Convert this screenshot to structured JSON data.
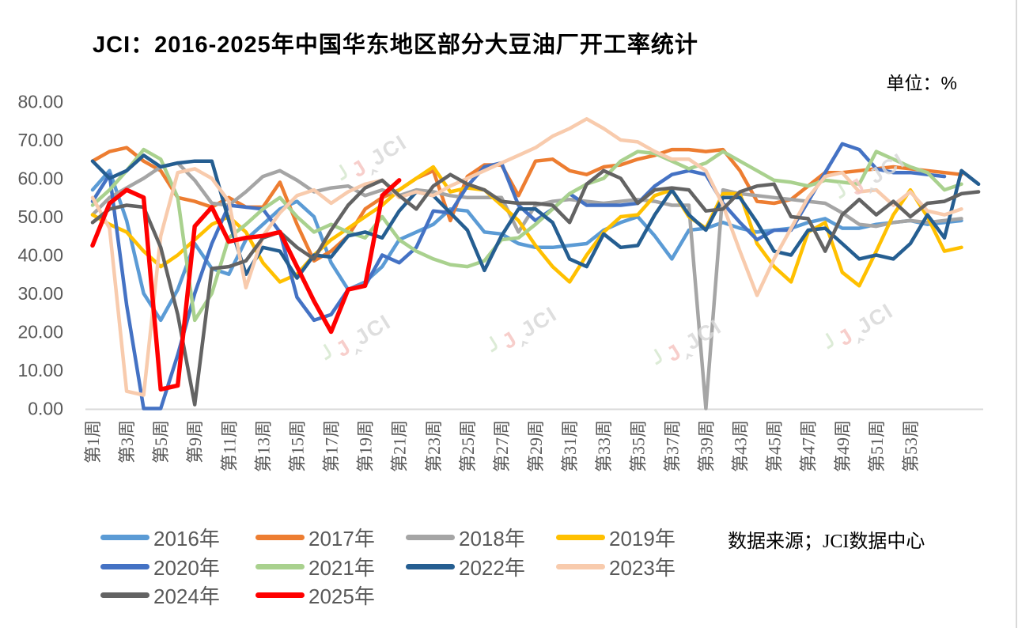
{
  "title": "JCI：2016-2025年中国华东地区部分大豆油厂开工率统计",
  "unit_label": "单位：%",
  "source_label": "数据来源；JCI数据中心",
  "watermark": {
    "tick": "╯",
    "j": "J",
    "gray": "‸JCI"
  },
  "chart_data": {
    "type": "line",
    "title": "JCI：2016-2025年中国华东地区部分大豆油厂开工率统计",
    "unit": "%",
    "grid": false,
    "legend_position": "bottom-left",
    "y_axis": {
      "min": 0,
      "max": 80,
      "tick_labels": [
        "80.00",
        "70.00",
        "60.00",
        "50.00",
        "40.00",
        "30.00",
        "20.00",
        "10.00",
        "0.00"
      ]
    },
    "x_axis": {
      "total_positions": 53,
      "label_every": 2,
      "tick_labels": [
        "第1周",
        "第3周",
        "第5周",
        "第9周",
        "第11周",
        "第13周",
        "第15周",
        "第17周",
        "第19周",
        "第21周",
        "第23周",
        "第25周",
        "第27周",
        "第29周",
        "第31周",
        "第33周",
        "第35周",
        "第37周",
        "第39周",
        "第43周",
        "第45周",
        "第47周",
        "第49周",
        "第51周",
        "第53周"
      ]
    },
    "series": [
      {
        "name": "2016年",
        "color": "#5B9BD5",
        "values": [
          57,
          62,
          49,
          30,
          23,
          31,
          43,
          36.5,
          35,
          44,
          48,
          52,
          54,
          50,
          38,
          31,
          33,
          37,
          44,
          46,
          48,
          52,
          51.5,
          46,
          45.5,
          43,
          42,
          42,
          42.5,
          43,
          46.5,
          48.5,
          50,
          45,
          39,
          46.5,
          47,
          48.5,
          47,
          46,
          46.5,
          47,
          48.5,
          49.5,
          47,
          47,
          48,
          48.5,
          49,
          48,
          48.5,
          49
        ]
      },
      {
        "name": "2017年",
        "color": "#ED7D31",
        "values": [
          64.5,
          67,
          68,
          64.5,
          62,
          55,
          54,
          52.5,
          55,
          52.5,
          52.5,
          59,
          48,
          38.5,
          41,
          45,
          52,
          55,
          57,
          60,
          62,
          49,
          60.5,
          63.5,
          63.5,
          55.5,
          64.5,
          65,
          62,
          61,
          63,
          63.5,
          65,
          66,
          67.5,
          67.5,
          67,
          67.5,
          62,
          54,
          53.5,
          54.5,
          58,
          61.5,
          61.5,
          62,
          62.5,
          63,
          62.5,
          62,
          61.5,
          61
        ]
      },
      {
        "name": "2018年",
        "color": "#A5A5A5",
        "values": [
          50.5,
          55,
          57.5,
          60,
          63,
          64,
          59.5,
          53.5,
          53,
          56.5,
          60.5,
          62,
          59.5,
          56.5,
          57.5,
          58,
          55.5,
          57,
          55.5,
          57,
          56.5,
          55.5,
          55,
          55,
          55,
          46,
          53,
          54,
          54.5,
          54,
          53.5,
          54,
          54.5,
          54,
          53,
          53,
          0,
          57,
          56,
          55.5,
          55,
          54.5,
          54,
          53.5,
          51,
          48,
          47.5,
          48.5,
          49,
          48.5,
          49,
          49.5
        ]
      },
      {
        "name": "2019年",
        "color": "#FFC000",
        "values": [
          50.5,
          48,
          46,
          41,
          37,
          40,
          44,
          48,
          50,
          46,
          38,
          33,
          35,
          40,
          44,
          47,
          50,
          53,
          57,
          60,
          63,
          56.5,
          57.5,
          57,
          53,
          49,
          42.5,
          37,
          33,
          40,
          46,
          50,
          50.5,
          55.5,
          57,
          50,
          47,
          56,
          56,
          43,
          37,
          33,
          46,
          48.5,
          35.5,
          32,
          41,
          50.5,
          57,
          50,
          41,
          42
        ]
      },
      {
        "name": "2020年",
        "color": "#4472C4",
        "values": [
          54,
          61,
          27,
          0,
          0,
          14,
          30,
          43,
          53,
          52.5,
          52,
          46,
          29,
          23,
          24.5,
          31,
          32,
          40,
          38,
          42,
          51.5,
          51,
          58,
          63,
          64,
          53,
          49,
          52,
          56,
          53,
          53,
          53,
          53.5,
          58,
          61,
          62,
          61,
          53.5,
          48.5,
          44,
          46.5,
          46.5,
          54,
          61.5,
          69,
          67.5,
          62.5,
          61.5,
          61.5,
          61,
          60.5
        ]
      },
      {
        "name": "2021年",
        "color": "#A9D18E",
        "values": [
          53,
          57,
          62,
          67.5,
          65,
          55,
          23,
          30,
          44.5,
          48,
          52,
          55,
          50,
          46,
          48,
          46,
          44.5,
          50,
          44,
          41,
          39,
          37.5,
          37,
          38.5,
          44,
          44.5,
          48,
          52,
          56,
          58.5,
          60,
          64.5,
          67,
          66.5,
          64.5,
          62.5,
          64,
          67,
          64.5,
          62,
          59.5,
          59,
          58,
          59.5,
          59,
          58.5,
          67,
          65,
          63,
          61.5,
          57,
          58.5
        ]
      },
      {
        "name": "2022年",
        "color": "#255E91",
        "values": [
          64.5,
          60,
          62,
          66,
          63,
          64,
          64.5,
          64.5,
          49,
          35,
          42,
          41,
          34,
          40,
          39.5,
          45,
          46,
          44.5,
          51.5,
          56.5,
          55.5,
          51,
          46.5,
          36,
          45,
          52,
          52,
          48.5,
          39,
          37,
          45.5,
          42,
          42.5,
          50.5,
          57,
          50.5,
          46.5,
          55,
          55,
          48.5,
          41,
          40,
          46.5,
          47,
          43,
          39,
          40,
          39,
          43,
          50.5,
          44.5,
          62,
          58.5
        ]
      },
      {
        "name": "2023年",
        "color": "#F8CBAD",
        "values": [
          55,
          47,
          4.5,
          3.5,
          45,
          61.5,
          62.5,
          60,
          54,
          31.5,
          45,
          51,
          55.5,
          57,
          53.5,
          56.5,
          58.5,
          59.5,
          55,
          56.5,
          55.5,
          58,
          60,
          62,
          64,
          66,
          68,
          71,
          73,
          75.5,
          73,
          70,
          69.5,
          67,
          65,
          65,
          62,
          53,
          41,
          29.5,
          39,
          47,
          55,
          60.5,
          61.5,
          56.5,
          57,
          53,
          56.5,
          51.5,
          50.5,
          52
        ]
      },
      {
        "name": "2024年",
        "color": "#636363",
        "values": [
          48.5,
          52,
          53,
          52.5,
          42,
          24.5,
          1,
          36.5,
          37,
          38.5,
          44.5,
          46,
          42,
          39,
          46.5,
          53,
          57.5,
          59.5,
          55.5,
          52,
          58,
          61,
          58.5,
          57,
          54,
          53.5,
          53.5,
          53,
          48.5,
          58.5,
          62,
          60,
          53.5,
          57,
          57.5,
          57,
          51.5,
          52,
          56.5,
          58,
          58.5,
          50,
          49.5,
          41,
          50.5,
          54.5,
          50.5,
          54,
          50,
          53.5,
          54,
          56,
          56.5
        ]
      },
      {
        "name": "2025年",
        "color": "#FF0000",
        "values": [
          42.5,
          53.5,
          57,
          55,
          5,
          6,
          47.5,
          52.5,
          43.5,
          44.5,
          45,
          46,
          37,
          28,
          20,
          31,
          32,
          55.5,
          59.5
        ]
      }
    ]
  }
}
